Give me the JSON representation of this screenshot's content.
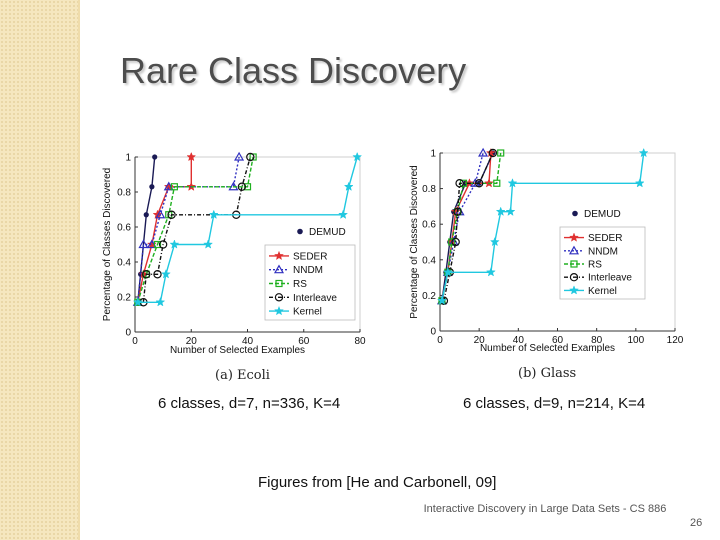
{
  "slide": {
    "title": "Rare Class Discovery",
    "figure_source": "Figures from [He and Carbonell, 09]",
    "footer": "Interactive Discovery in Large Data Sets - CS 886",
    "page_number": "26",
    "colors": {
      "background_band": "#f5e7bf",
      "title": "#4d4d4d"
    }
  },
  "chart_data": [
    {
      "type": "line",
      "caption": "(a) Ecoli",
      "description": "6 classes, d=7, n=336, K=4",
      "xlabel": "Number of Selected Examples",
      "ylabel": "Percentage of Classes Discovered",
      "xlim": [
        0,
        80
      ],
      "ylim": [
        0,
        1
      ],
      "xticks": [
        "0",
        "20",
        "40",
        "60",
        "80"
      ],
      "yticks": [
        "0",
        "0.2",
        "0.4",
        "0.6",
        "0.8",
        "1"
      ],
      "legend_position": "bottom-right",
      "annotation": "DEMUD",
      "series": [
        {
          "name": "DEMUD",
          "color": "#1a1a55",
          "marker": "dot",
          "dash": "",
          "points": [
            [
              1,
              0.17
            ],
            [
              2,
              0.33
            ],
            [
              4,
              0.67
            ],
            [
              6,
              0.83
            ],
            [
              7,
              1.0
            ]
          ]
        },
        {
          "name": "SEDER",
          "color": "#e03030",
          "marker": "star",
          "dash": "",
          "points": [
            [
              1,
              0.17
            ],
            [
              3,
              0.33
            ],
            [
              6,
              0.5
            ],
            [
              8,
              0.67
            ],
            [
              12,
              0.83
            ],
            [
              20,
              0.83
            ],
            [
              20,
              1.0
            ]
          ]
        },
        {
          "name": "NNDM",
          "color": "#3030c0",
          "marker": "triangle",
          "dash": "2,2",
          "points": [
            [
              1,
              0.17
            ],
            [
              3,
              0.5
            ],
            [
              6,
              0.5
            ],
            [
              9,
              0.67
            ],
            [
              12,
              0.83
            ],
            [
              35,
              0.83
            ],
            [
              37,
              1.0
            ]
          ]
        },
        {
          "name": "RS",
          "color": "#20b020",
          "marker": "square",
          "dash": "4,2",
          "points": [
            [
              1,
              0.17
            ],
            [
              4,
              0.33
            ],
            [
              8,
              0.5
            ],
            [
              12,
              0.67
            ],
            [
              14,
              0.83
            ],
            [
              40,
              0.83
            ],
            [
              42,
              1.0
            ]
          ]
        },
        {
          "name": "Interleave",
          "color": "#111111",
          "marker": "circle",
          "dash": "4,2,1,2",
          "points": [
            [
              3,
              0.17
            ],
            [
              4,
              0.33
            ],
            [
              8,
              0.33
            ],
            [
              10,
              0.5
            ],
            [
              13,
              0.67
            ],
            [
              36,
              0.67
            ],
            [
              38,
              0.83
            ],
            [
              41,
              1.0
            ]
          ]
        },
        {
          "name": "Kernel",
          "color": "#20c8e0",
          "marker": "star",
          "dash": "",
          "points": [
            [
              1,
              0.17
            ],
            [
              9,
              0.17
            ],
            [
              11,
              0.33
            ],
            [
              14,
              0.5
            ],
            [
              26,
              0.5
            ],
            [
              28,
              0.67
            ],
            [
              74,
              0.67
            ],
            [
              76,
              0.83
            ],
            [
              79,
              1.0
            ]
          ]
        }
      ]
    },
    {
      "type": "line",
      "caption": "(b) Glass",
      "description": "6 classes, d=9, n=214, K=4",
      "xlabel": "Number of Selected Examples",
      "ylabel": "Percentage of Classes Discovered",
      "xlim": [
        0,
        120
      ],
      "ylim": [
        0,
        1
      ],
      "xticks": [
        "0",
        "20",
        "40",
        "60",
        "80",
        "100",
        "120"
      ],
      "yticks": [
        "0",
        "0.2",
        "0.4",
        "0.6",
        "0.8",
        "1"
      ],
      "legend_position": "right",
      "annotation": "DEMUD",
      "series": [
        {
          "name": "DEMUD",
          "color": "#1a1a55",
          "marker": "dot",
          "dash": "",
          "points": [
            [
              1,
              0.17
            ],
            [
              3,
              0.33
            ],
            [
              5,
              0.5
            ],
            [
              7,
              0.67
            ],
            [
              13,
              0.83
            ],
            [
              20,
              0.83
            ],
            [
              27,
              1.0
            ]
          ]
        },
        {
          "name": "SEDER",
          "color": "#e03030",
          "marker": "star",
          "dash": "",
          "points": [
            [
              1,
              0.17
            ],
            [
              4,
              0.33
            ],
            [
              6,
              0.5
            ],
            [
              8,
              0.67
            ],
            [
              15,
              0.83
            ],
            [
              25,
              0.83
            ],
            [
              26,
              1.0
            ]
          ]
        },
        {
          "name": "NNDM",
          "color": "#3030c0",
          "marker": "triangle",
          "dash": "2,2",
          "points": [
            [
              1,
              0.17
            ],
            [
              4,
              0.33
            ],
            [
              7,
              0.5
            ],
            [
              10,
              0.67
            ],
            [
              18,
              0.83
            ],
            [
              22,
              1.0
            ]
          ]
        },
        {
          "name": "RS",
          "color": "#20b020",
          "marker": "square",
          "dash": "4,2",
          "points": [
            [
              1,
              0.17
            ],
            [
              4,
              0.33
            ],
            [
              6,
              0.5
            ],
            [
              9,
              0.67
            ],
            [
              12,
              0.83
            ],
            [
              29,
              0.83
            ],
            [
              31,
              1.0
            ]
          ]
        },
        {
          "name": "Interleave",
          "color": "#111111",
          "marker": "circle",
          "dash": "4,2,1,2",
          "points": [
            [
              2,
              0.17
            ],
            [
              5,
              0.33
            ],
            [
              8,
              0.5
            ],
            [
              9,
              0.67
            ],
            [
              10,
              0.83
            ],
            [
              20,
              0.83
            ],
            [
              27,
              1.0
            ]
          ]
        },
        {
          "name": "Kernel",
          "color": "#20c8e0",
          "marker": "star",
          "dash": "",
          "points": [
            [
              1,
              0.17
            ],
            [
              4,
              0.33
            ],
            [
              26,
              0.33
            ],
            [
              28,
              0.5
            ],
            [
              31,
              0.67
            ],
            [
              36,
              0.67
            ],
            [
              37,
              0.83
            ],
            [
              102,
              0.83
            ],
            [
              104,
              1.0
            ]
          ]
        }
      ]
    }
  ]
}
